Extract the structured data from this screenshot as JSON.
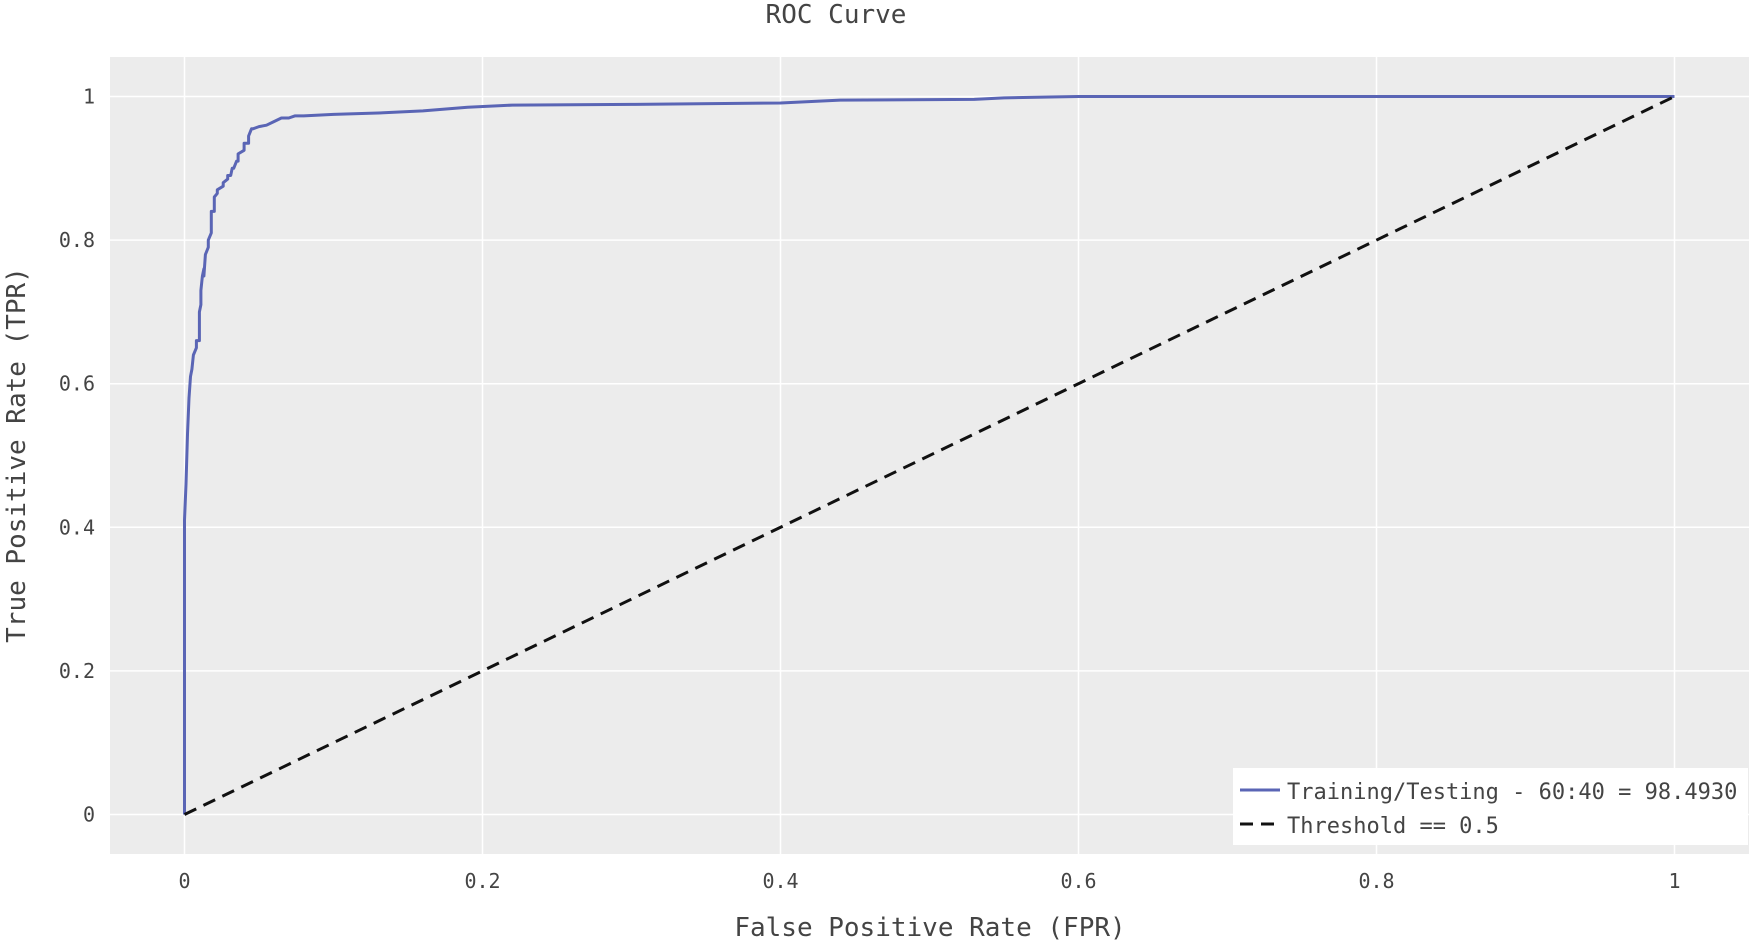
{
  "chart_data": {
    "type": "line",
    "title": "ROC Curve",
    "xlabel": "False Positive Rate (FPR)",
    "ylabel": "True Positive Rate (TPR)",
    "xlim": [
      -0.05,
      1.05
    ],
    "ylim": [
      -0.055,
      1.055
    ],
    "xticks": [
      0,
      0.2,
      0.4,
      0.6,
      0.8,
      1
    ],
    "xtick_labels": [
      "0",
      "0.2",
      "0.4",
      "0.6",
      "0.8",
      "1"
    ],
    "yticks": [
      0,
      0.2,
      0.4,
      0.6,
      0.8,
      1
    ],
    "ytick_labels": [
      "0",
      "0.2",
      "0.4",
      "0.6",
      "0.8",
      "1"
    ],
    "grid": true,
    "legend_position": "bottom-right",
    "series": [
      {
        "name": "Training/Testing - 60:40 = 98.4930",
        "color": "#5a65b5",
        "dash": "solid",
        "x": [
          0,
          0,
          0.001,
          0.002,
          0.003,
          0.004,
          0.005,
          0.006,
          0.008,
          0.008,
          0.009,
          0.01,
          0.01,
          0.011,
          0.011,
          0.012,
          0.013,
          0.013,
          0.014,
          0.016,
          0.016,
          0.018,
          0.018,
          0.02,
          0.02,
          0.022,
          0.022,
          0.026,
          0.026,
          0.029,
          0.029,
          0.031,
          0.032,
          0.033,
          0.035,
          0.036,
          0.036,
          0.04,
          0.04,
          0.043,
          0.043,
          0.045,
          0.046,
          0.05,
          0.055,
          0.06,
          0.065,
          0.07,
          0.074,
          0.08,
          0.1,
          0.13,
          0.16,
          0.19,
          0.22,
          0.3,
          0.4,
          0.44,
          0.53,
          0.55,
          0.6,
          1
        ],
        "y": [
          0,
          0.41,
          0.46,
          0.53,
          0.58,
          0.61,
          0.62,
          0.64,
          0.65,
          0.66,
          0.66,
          0.66,
          0.7,
          0.71,
          0.73,
          0.75,
          0.76,
          0.75,
          0.78,
          0.79,
          0.8,
          0.81,
          0.84,
          0.84,
          0.86,
          0.865,
          0.87,
          0.875,
          0.88,
          0.885,
          0.89,
          0.89,
          0.9,
          0.9,
          0.91,
          0.91,
          0.92,
          0.925,
          0.935,
          0.935,
          0.945,
          0.955,
          0.955,
          0.958,
          0.96,
          0.965,
          0.97,
          0.97,
          0.973,
          0.973,
          0.975,
          0.977,
          0.98,
          0.985,
          0.988,
          0.989,
          0.991,
          0.995,
          0.996,
          0.998,
          1,
          1
        ]
      },
      {
        "name": "Threshold == 0.5",
        "color": "#111111",
        "dash": "dashed",
        "x": [
          0,
          1
        ],
        "y": [
          0,
          1
        ]
      }
    ]
  }
}
